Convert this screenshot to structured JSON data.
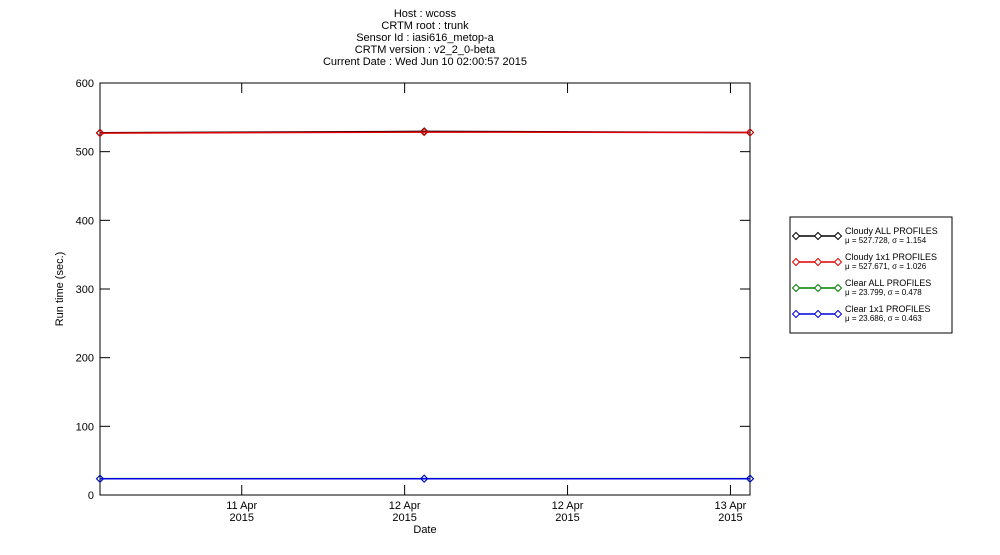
{
  "chart_data": {
    "type": "line",
    "title_lines": [
      "Host : wcoss",
      "CRTM root : trunk",
      "Sensor Id : iasi616_metop-a",
      "CRTM version : v2_2_0-beta",
      "Current Date : Wed Jun 10 02:00:57 2015"
    ],
    "x_label": "Date",
    "y_label": "Run time (sec.)",
    "xlim": [
      0.13,
      4.12
    ],
    "xticks": [
      {
        "value": 1,
        "label": "11 Apr\n2015"
      },
      {
        "value": 2,
        "label": "12 Apr\n2015"
      },
      {
        "value": 3,
        "label": "12 Apr\n2015"
      },
      {
        "value": 4,
        "label": "13 Apr\n2015"
      }
    ],
    "ylim": [
      0,
      600
    ],
    "yticks": [
      0,
      100,
      200,
      300,
      400,
      500,
      600
    ],
    "x": [
      0.13,
      2.12,
      4.12
    ],
    "series": [
      {
        "name": "Cloudy ALL PROFILES",
        "stats": "μ = 527.728, σ =  1.154",
        "color": "#000000",
        "values": [
          527.5,
          529.5,
          528
        ]
      },
      {
        "name": "Cloudy 1x1 PROFILES",
        "stats": "μ = 527.671, σ =  1.026",
        "color": "#e00000",
        "values": [
          527,
          528.5,
          528
        ]
      },
      {
        "name": "Clear ALL PROFILES",
        "stats": "μ = 23.799, σ =  0.478",
        "color": "#008000",
        "values": [
          23.8,
          23.9,
          23.8
        ]
      },
      {
        "name": "Clear 1x1 PROFILES",
        "stats": "μ = 23.686, σ =  0.463",
        "color": "#0000e0",
        "values": [
          23.6,
          23.7,
          23.7
        ]
      }
    ]
  }
}
